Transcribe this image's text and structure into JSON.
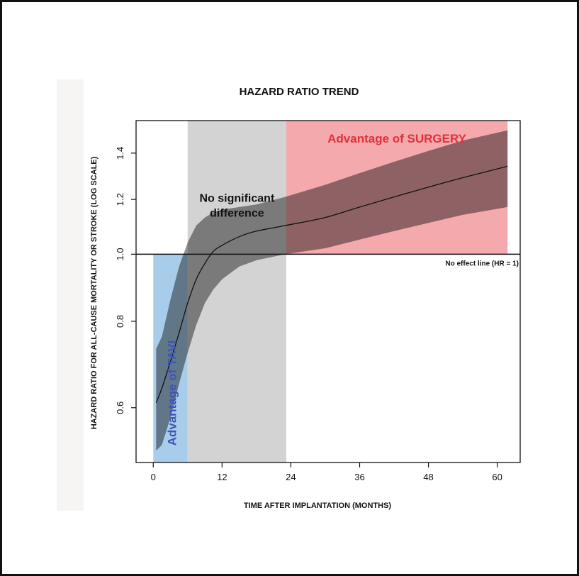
{
  "chart_data": {
    "type": "line",
    "title": "HAZARD RATIO TREND",
    "xlabel": "TIME AFTER IMPLANTATION (MONTHS)",
    "ylabel": "HAZARD RATIO FOR ALL-CAUSE MORTALITY OR STROKE (LOG SCALE)",
    "y_scale": "log",
    "xlim": [
      -3,
      64
    ],
    "ylim": [
      0.5,
      1.56
    ],
    "x_ticks": [
      0,
      12,
      24,
      36,
      48,
      60
    ],
    "y_ticks": [
      0.6,
      0.8,
      1.0,
      1.2,
      1.4
    ],
    "y_tick_labels": [
      "0.6",
      "0.8",
      "1.0",
      "1.2",
      "1.4"
    ],
    "reference_line": {
      "y": 1.0,
      "label": "No effect line (HR = 1)"
    },
    "regions": [
      {
        "label": "Advantage of TAVI",
        "x_start": 0,
        "x_end": 6,
        "y_start": 0.5,
        "y_end": 1.0,
        "color": "#a8cdeb",
        "label_color": "#3f55b4"
      },
      {
        "label_lines": [
          "No significant",
          "difference"
        ],
        "x_start": 6,
        "x_end": 23.2,
        "y_start": 0.5,
        "y_end": 1.56,
        "color": "#d3d3d3",
        "label_color": "#111111"
      },
      {
        "label": "Advantage of SURGERY",
        "x_start": 23.2,
        "x_end": 61.8,
        "y_start": 1.0,
        "y_end": 1.56,
        "color": "#f4a9ad",
        "label_color": "#e0323b"
      }
    ],
    "series": [
      {
        "x": [
          0.5,
          1.5,
          3,
          4.5,
          6,
          7.5,
          9,
          10.5,
          12,
          15,
          18,
          23,
          30,
          36,
          42,
          48,
          54,
          61.8
        ],
        "y": [
          0.61,
          0.64,
          0.7,
          0.77,
          0.85,
          0.92,
          0.97,
          1.01,
          1.03,
          1.06,
          1.08,
          1.1,
          1.13,
          1.17,
          1.21,
          1.25,
          1.29,
          1.34
        ],
        "lower": [
          0.52,
          0.53,
          0.58,
          0.65,
          0.72,
          0.79,
          0.85,
          0.89,
          0.92,
          0.96,
          0.98,
          1.0,
          1.02,
          1.05,
          1.08,
          1.11,
          1.14,
          1.17
        ],
        "upper": [
          0.73,
          0.76,
          0.86,
          0.96,
          1.04,
          1.1,
          1.13,
          1.15,
          1.16,
          1.17,
          1.18,
          1.21,
          1.26,
          1.31,
          1.36,
          1.41,
          1.46,
          1.51
        ]
      }
    ],
    "colors": {
      "band": "#000000",
      "line": "#111111",
      "axis": "#111111"
    },
    "band_opacity": 0.42
  }
}
